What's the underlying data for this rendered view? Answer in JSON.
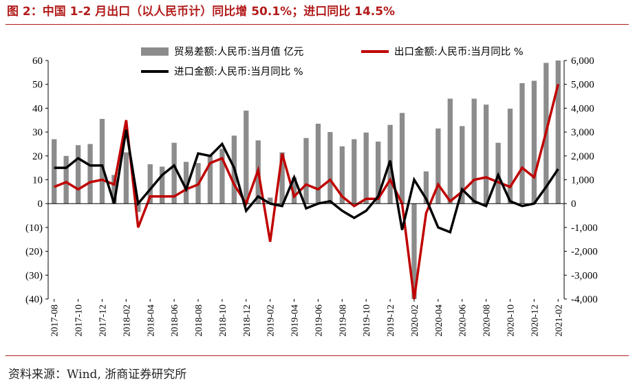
{
  "header": {
    "title": "图 2：中国 1-2 月出口（以人民币计）同比增 50.1%；进口同比 14.5%",
    "source": "资料来源：Wind, 浙商证券研究所"
  },
  "colors": {
    "bar": "#8c8c8c",
    "export": "#c00000",
    "import": "#000000",
    "accent": "#b31b1b"
  },
  "chart_data": {
    "type": "bar",
    "title": "",
    "legend_position": "top",
    "grid": false,
    "x": [
      "2017-08",
      "2017-09",
      "2017-10",
      "2017-11",
      "2017-12",
      "2018-01",
      "2018-02",
      "2018-03",
      "2018-04",
      "2018-05",
      "2018-06",
      "2018-07",
      "2018-08",
      "2018-09",
      "2018-10",
      "2018-11",
      "2018-12",
      "2019-01",
      "2019-02",
      "2019-03",
      "2019-04",
      "2019-05",
      "2019-06",
      "2019-07",
      "2019-08",
      "2019-09",
      "2019-10",
      "2019-11",
      "2019-12",
      "2020-01",
      "2020-02",
      "2020-03",
      "2020-04",
      "2020-05",
      "2020-06",
      "2020-07",
      "2020-08",
      "2020-09",
      "2020-10",
      "2020-11",
      "2020-12",
      "2021-01",
      "2021-02"
    ],
    "x_tick_labels": [
      "2017-08",
      "2017-10",
      "2017-12",
      "2018-02",
      "2018-04",
      "2018-06",
      "2018-08",
      "2018-10",
      "2018-12",
      "2019-02",
      "2019-04",
      "2019-06",
      "2019-08",
      "2019-10",
      "2019-12",
      "2020-02",
      "2020-04",
      "2020-06",
      "2020-08",
      "2020-10",
      "2020-12",
      "2021-02"
    ],
    "y_left": {
      "ylim": [
        -40,
        60
      ],
      "ticks": [
        60,
        50,
        40,
        30,
        20,
        10,
        0,
        -10,
        -20,
        -30,
        -40
      ],
      "tick_labels": [
        "60",
        "50",
        "40",
        "30",
        "20",
        "10",
        "0",
        "(10)",
        "(20)",
        "(30)",
        "(40)"
      ]
    },
    "y_right": {
      "ylim": [
        -4000,
        6000
      ],
      "ticks": [
        6000,
        5000,
        4000,
        3000,
        2000,
        1000,
        0,
        -1000,
        -2000,
        -3000,
        -4000
      ],
      "tick_labels": [
        "6,000",
        "5,000",
        "4,000",
        "3,000",
        "2,000",
        "1,000",
        "0",
        "-1,000",
        "-2,000",
        "-3,000",
        "-4,000"
      ]
    },
    "series": [
      {
        "name": "贸易差额:人民币:当月值 亿元",
        "type": "bar",
        "axis": "right",
        "values": [
          2700,
          2000,
          2450,
          2500,
          3550,
          1200,
          2150,
          -350,
          1650,
          1550,
          2550,
          1750,
          1700,
          2000,
          2300,
          2850,
          3900,
          2650,
          250,
          2150,
          1100,
          2750,
          3350,
          3000,
          2400,
          2700,
          2980,
          2600,
          3300,
          3800,
          -4000,
          1350,
          3150,
          4400,
          3250,
          4400,
          4150,
          2550,
          3980,
          5050,
          5150,
          5900,
          6000
        ]
      },
      {
        "name": "出口金额:人民币:当月同比 %",
        "type": "line",
        "axis": "left",
        "values": [
          7,
          9,
          6,
          9,
          10,
          8,
          35,
          -10,
          3,
          3,
          3,
          6,
          8,
          17,
          19,
          8,
          0,
          14,
          -16,
          21,
          3,
          8,
          6,
          10,
          3,
          -1,
          2,
          2,
          10,
          0,
          -40,
          -4,
          8,
          1,
          5,
          10,
          11,
          9,
          7,
          15,
          11,
          30,
          50.1
        ]
      },
      {
        "name": "进口金额:人民币:当月同比 %",
        "type": "line",
        "axis": "left",
        "values": [
          15,
          15,
          19,
          16,
          16,
          0,
          31,
          0,
          6,
          12,
          16,
          6,
          21,
          20,
          25,
          15,
          -3,
          3,
          0,
          -1,
          11,
          -2,
          0,
          1,
          -3,
          -6,
          -3,
          3,
          18,
          -11,
          10,
          2,
          -10,
          -12,
          6,
          1,
          -1,
          12,
          1,
          -1,
          0,
          7,
          14.5
        ]
      }
    ]
  }
}
